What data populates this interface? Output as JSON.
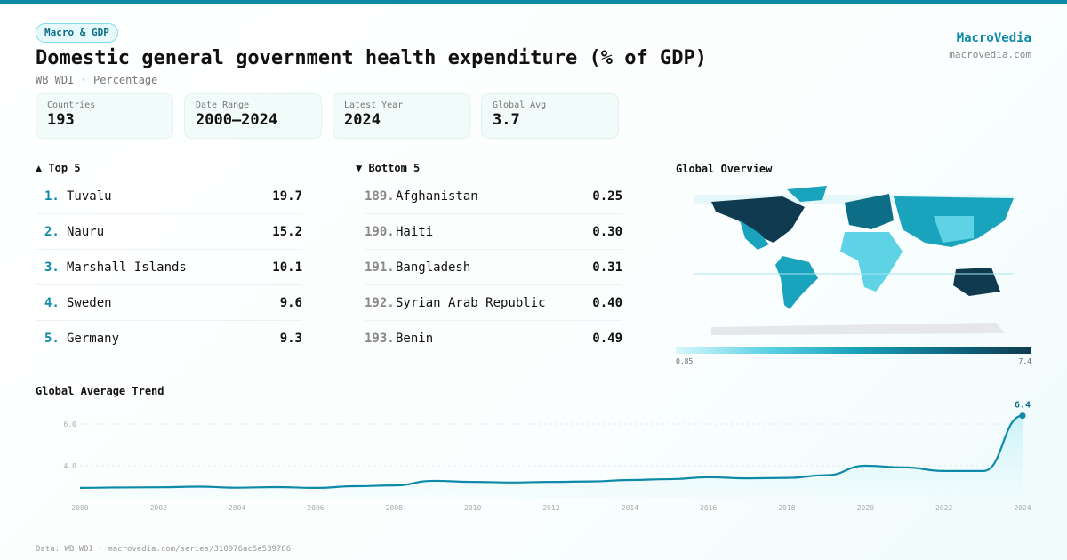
{
  "header": {
    "category": "Macro & GDP",
    "title": "Domestic general government health expenditure (% of GDP)",
    "subtitle": "WB WDI · Percentage",
    "brand": "MacroVedia",
    "brand_url": "macrovedia.com"
  },
  "stats": [
    {
      "label": "Countries",
      "value": "193"
    },
    {
      "label": "Date Range",
      "value": "2000–2024"
    },
    {
      "label": "Latest Year",
      "value": "2024"
    },
    {
      "label": "Global Avg",
      "value": "3.7"
    }
  ],
  "top5": {
    "title": "▲ Top 5",
    "items": [
      {
        "rank": "1.",
        "country": "Tuvalu",
        "value": "19.7"
      },
      {
        "rank": "2.",
        "country": "Nauru",
        "value": "15.2"
      },
      {
        "rank": "3.",
        "country": "Marshall Islands",
        "value": "10.1"
      },
      {
        "rank": "4.",
        "country": "Sweden",
        "value": "9.6"
      },
      {
        "rank": "5.",
        "country": "Germany",
        "value": "9.3"
      }
    ]
  },
  "bottom5": {
    "title": "▼ Bottom 5",
    "items": [
      {
        "rank": "189.",
        "country": "Afghanistan",
        "value": "0.25"
      },
      {
        "rank": "190.",
        "country": "Haiti",
        "value": "0.30"
      },
      {
        "rank": "191.",
        "country": "Bangladesh",
        "value": "0.31"
      },
      {
        "rank": "192.",
        "country": "Syrian Arab Republic",
        "value": "0.40"
      },
      {
        "rank": "193.",
        "country": "Benin",
        "value": "0.49"
      }
    ]
  },
  "map": {
    "title": "Global Overview",
    "legend_min": "0.85",
    "legend_max": "7.4",
    "colors": [
      "#d8f6fa",
      "#5fd3e6",
      "#1aa3bd",
      "#0e6d87",
      "#0f3a4f"
    ]
  },
  "footer": "Data: WB WDI · macrovedia.com/series/310976ac5e539786",
  "chart_data": {
    "type": "area",
    "title": "Global Average Trend",
    "x": [
      2000,
      2001,
      2002,
      2003,
      2004,
      2005,
      2006,
      2007,
      2008,
      2009,
      2010,
      2011,
      2012,
      2013,
      2014,
      2015,
      2016,
      2017,
      2018,
      2019,
      2020,
      2021,
      2022,
      2023,
      2024
    ],
    "y": [
      2.94,
      2.96,
      2.97,
      3.0,
      2.95,
      2.98,
      2.94,
      3.02,
      3.06,
      3.28,
      3.23,
      3.2,
      3.23,
      3.25,
      3.32,
      3.36,
      3.45,
      3.4,
      3.42,
      3.55,
      4.0,
      3.92,
      3.75,
      3.75,
      6.4
    ],
    "xticks": [
      "2000",
      "2002",
      "2004",
      "2006",
      "2008",
      "2010",
      "2012",
      "2014",
      "2016",
      "2018",
      "2020",
      "2022",
      "2024"
    ],
    "yticks": [
      "4.0",
      "6.0"
    ],
    "last_label": "6.4",
    "color": "#0e8aa8",
    "grid": true
  }
}
